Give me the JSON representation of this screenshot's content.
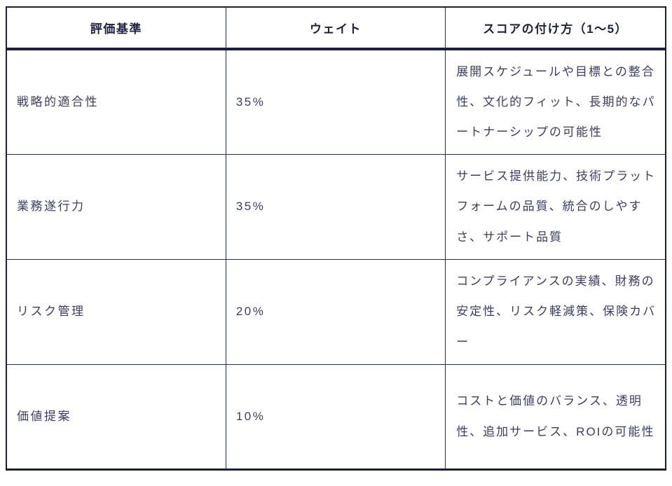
{
  "table": {
    "headers": {
      "criterion": "評価基準",
      "weight": "ウェイト",
      "scoring": "スコアの付け方（1〜5）"
    },
    "rows": [
      {
        "criterion": "戦略的適合性",
        "weight": "35%",
        "scoring": "展開スケジュールや目標との整合性、文化的フィット、長期的なパートナーシップの可能性"
      },
      {
        "criterion": "業務遂行力",
        "weight": "35%",
        "scoring": "サービス提供能力、技術プラットフォームの品質、統合のしやすさ、サポート品質"
      },
      {
        "criterion": "リスク管理",
        "weight": "20%",
        "scoring": "コンプライアンスの実績、財務の安定性、リスク軽減策、保険カバー"
      },
      {
        "criterion": "価値提案",
        "weight": "10%",
        "scoring": "コストと価値のバランス、透明性、追加サービス、ROIの可能性"
      }
    ]
  },
  "colors": {
    "border": "#2a2e52",
    "border_strong": "#1a1e3f",
    "header_text": "#1c2142",
    "body_text": "#3b3e63",
    "background": "#ffffff"
  }
}
